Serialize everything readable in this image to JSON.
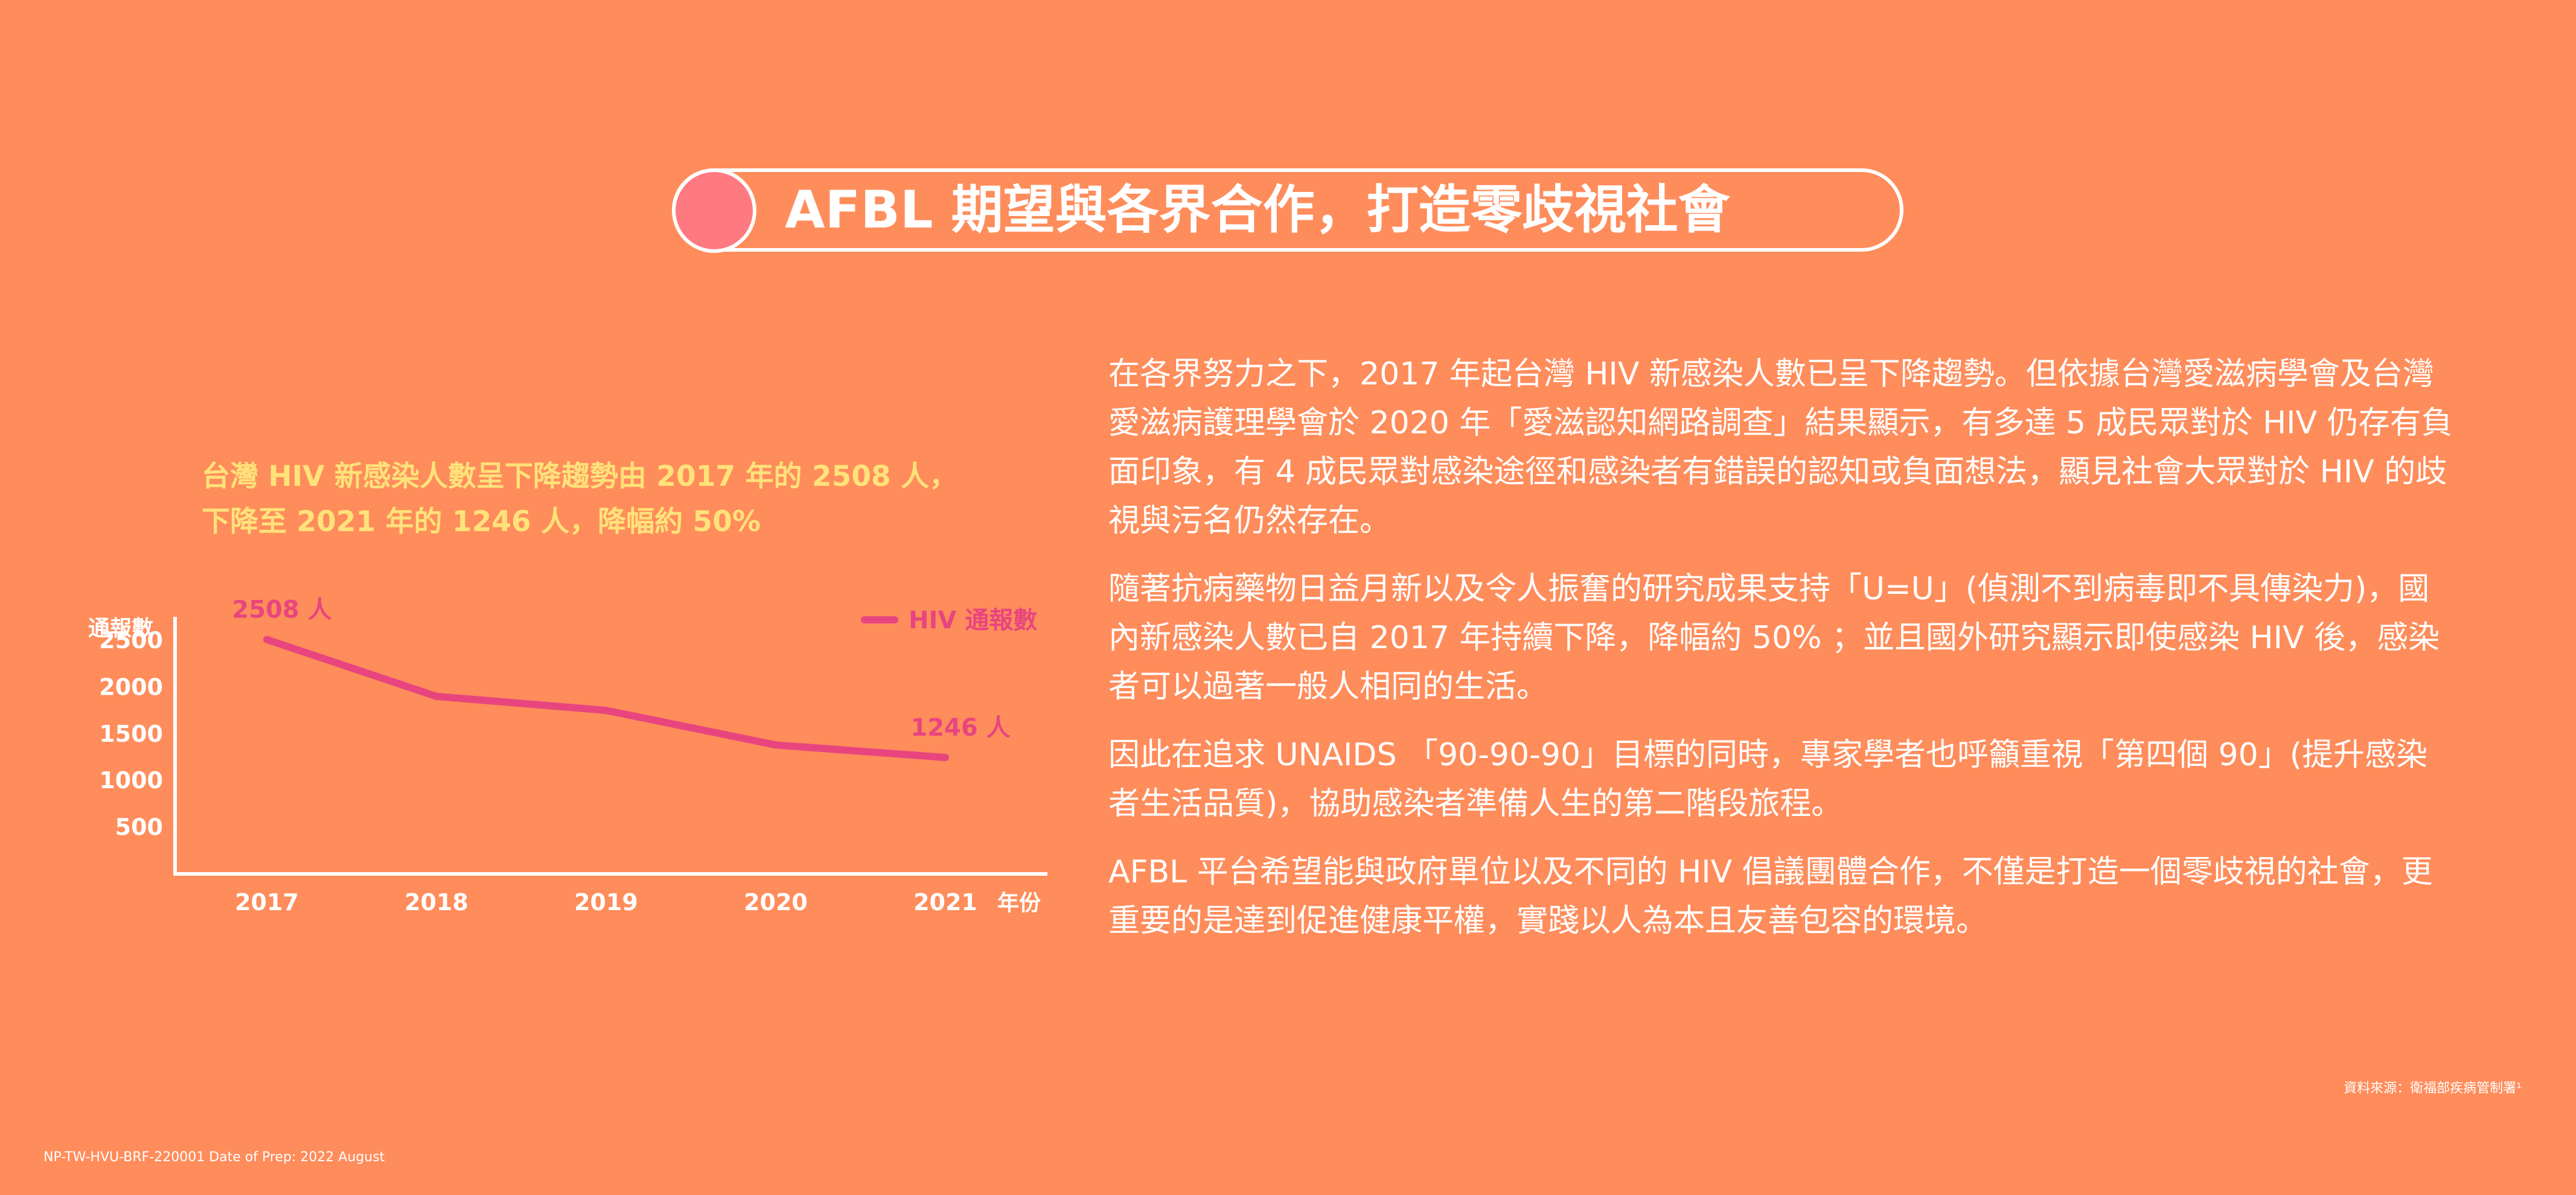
{
  "title": {
    "text": "AFBL 期望與各界合作，打造零歧視社會"
  },
  "chart_caption": {
    "line1": "台灣 HIV 新感染人數呈下降趨勢由 2017 年的 2508 人，",
    "line2": "下降至 2021 年的 1246 人，降幅約 50%"
  },
  "chart_data": {
    "type": "line",
    "title": "",
    "xlabel": "年份",
    "ylabel": "通報數",
    "categories": [
      "2017",
      "2018",
      "2019",
      "2020",
      "2021"
    ],
    "y_ticks": [
      500,
      1000,
      1500,
      2000,
      2500
    ],
    "ylim": [
      0,
      2700
    ],
    "series": [
      {
        "name": "HIV 通報數",
        "color": "#E8457F",
        "values": [
          2508,
          1900,
          1750,
          1380,
          1246
        ]
      }
    ],
    "annotations": [
      {
        "category": "2017",
        "value": 2508,
        "text": "2508 人"
      },
      {
        "category": "2021",
        "value": 1246,
        "text": "1246 人"
      }
    ],
    "legend": "top-right",
    "grid": false,
    "colors": {
      "axis": "#FFFFFF",
      "tick_text": "#FFFFFF",
      "annotation_text": "#E8457F",
      "legend_text": "#E8457F"
    }
  },
  "body": {
    "p1": "在各界努力之下，2017 年起台灣 HIV 新感染人數已呈下降趨勢。但依據台灣愛滋病學會及台灣愛滋病護理學會於 2020 年「愛滋認知網路調查」結果顯示，有多達 5 成民眾對於 HIV 仍存有負面印象，有 4 成民眾對感染途徑和感染者有錯誤的認知或負面想法，顯見社會大眾對於 HIV 的歧視與污名仍然存在。",
    "p2": "隨著抗病藥物日益月新以及令人振奮的研究成果支持「U=U」(偵測不到病毒即不具傳染力)，國內新感染人數已自 2017 年持續下降，降幅約 50% ；並且國外研究顯示即使感染 HIV 後，感染者可以過著一般人相同的生活。",
    "p3": "因此在追求 UNAIDS 「90-90-90」目標的同時，專家學者也呼籲重視「第四個 90」(提升感染者生活品質)，協助感染者準備人生的第二階段旅程。",
    "p4": "AFBL 平台希望能與政府單位以及不同的 HIV 倡議團體合作，不僅是打造一個零歧視的社會，更重要的是達到促進健康平權，實踐以人為本且友善包容的環境。"
  },
  "footer": {
    "source": "資料來源：衛福部疾病管制署¹",
    "code": "NP-TW-HVU-BRF-220001  Date of Prep: 2022 August"
  },
  "colors": {
    "background": "#FF8C5B",
    "title_dot": "#FF7A80",
    "caption": "#FFE27A",
    "text": "#FFFFFF"
  }
}
